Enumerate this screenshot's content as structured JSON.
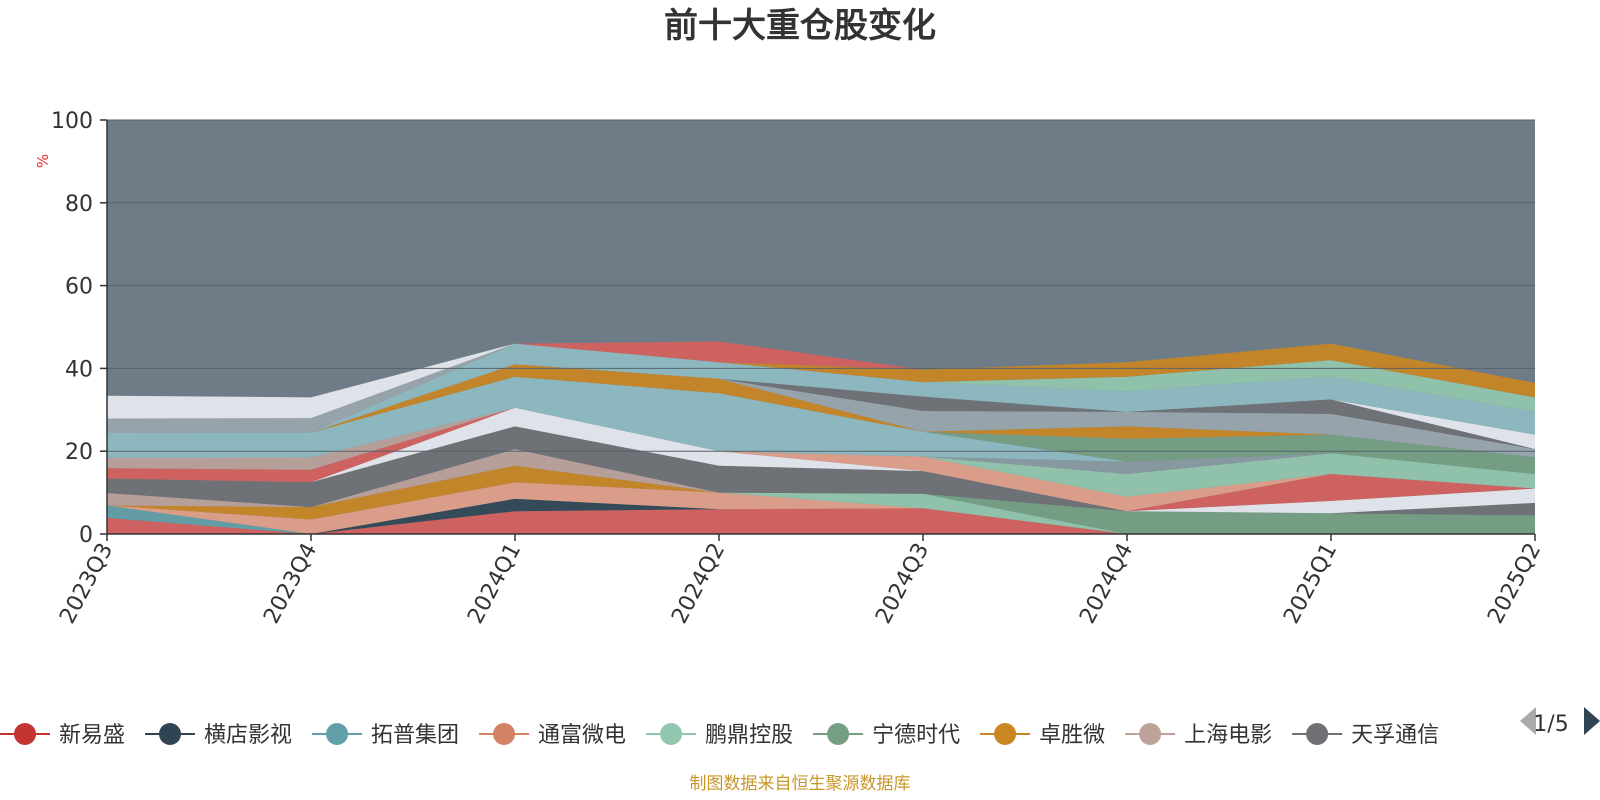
{
  "chart_data": {
    "type": "area",
    "title": "前十大重仓股变化",
    "ylabel": "%",
    "ylim": [
      0,
      100
    ],
    "yticks": [
      "0",
      "20",
      "40",
      "60",
      "80",
      "100"
    ],
    "categories": [
      "2023Q3",
      "2023Q4",
      "2024Q1",
      "2024Q2",
      "2024Q3",
      "2024Q4",
      "2025Q1",
      "2025Q2"
    ],
    "stacked": true,
    "grid": true,
    "background_color": "#6e7c87",
    "series": [
      {
        "name": "新易盛",
        "color": "#d65f5c",
        "values": [
          3.9,
          0,
          5.5,
          6.0,
          6.2,
          0,
          0,
          0
        ]
      },
      {
        "name": "横店影视",
        "color": "#2f4554",
        "values": [
          0,
          0,
          3.0,
          0,
          0,
          0,
          0,
          0
        ]
      },
      {
        "name": "拓普集团",
        "color": "#61a0a8",
        "values": [
          3.0,
          0,
          0,
          0,
          0,
          0,
          0,
          0
        ]
      },
      {
        "name": "通富微电",
        "color": "#e3a08a",
        "values": [
          0,
          3.5,
          4.0,
          4.0,
          0,
          0,
          0,
          0
        ]
      },
      {
        "name": "鹏鼎控股",
        "color": "#91c7ae",
        "values": [
          0,
          0,
          0,
          0,
          3.5,
          0,
          0,
          0
        ]
      },
      {
        "name": "宁德时代",
        "color": "#749f83",
        "values": [
          0,
          0,
          0,
          0,
          0,
          5.5,
          5.0,
          4.5
        ]
      },
      {
        "name": "卓胜微",
        "color": "#ca8622",
        "values": [
          0,
          3.0,
          4.0,
          0,
          0,
          0,
          0,
          0
        ]
      },
      {
        "name": "上海电影",
        "color": "#bda29a",
        "values": [
          3.0,
          0,
          4.0,
          0,
          0,
          0,
          0,
          0
        ]
      },
      {
        "name": "天孚通信",
        "color": "#6e7074",
        "values": [
          3.5,
          6.0,
          5.5,
          6.5,
          5.5,
          0,
          0,
          3.0
        ]
      },
      {
        "name": "",
        "color": "#e8eaf0",
        "values": [
          0,
          0,
          4.5,
          3.5,
          0,
          0,
          3.0,
          3.5
        ]
      },
      {
        "name": "",
        "color": "#d65f5c",
        "values": [
          2.5,
          3.0,
          0,
          0,
          0,
          0,
          6.5,
          0
        ]
      },
      {
        "name": "",
        "color": "#e3a08a",
        "values": [
          0,
          0,
          0,
          0,
          3.5,
          3.5,
          0,
          0
        ]
      },
      {
        "name": "",
        "color": "#91c7ae",
        "values": [
          0,
          0,
          0,
          0,
          0,
          5.5,
          5.0,
          3.5
        ]
      },
      {
        "name": "",
        "color": "#8a9aa3",
        "values": [
          0,
          0,
          0,
          0,
          0,
          3.0,
          0,
          0
        ]
      },
      {
        "name": "",
        "color": "#bda29a",
        "values": [
          2.5,
          3.0,
          0,
          0,
          0,
          0,
          0,
          0
        ]
      },
      {
        "name": "",
        "color": "#8fbcc2",
        "values": [
          6.0,
          6.0,
          7.5,
          14.0,
          6.0,
          0,
          0,
          0
        ]
      },
      {
        "name": "",
        "color": "#749f83",
        "values": [
          0,
          0,
          0,
          0,
          0,
          5.5,
          4.5,
          4.0
        ]
      },
      {
        "name": "",
        "color": "#ca8622",
        "values": [
          0,
          0,
          3.0,
          3.5,
          0,
          3.0,
          0,
          0
        ]
      },
      {
        "name": "",
        "color": "#9aa6ad",
        "values": [
          0,
          0,
          0,
          0,
          5.0,
          3.5,
          5.0,
          2.0
        ]
      },
      {
        "name": "",
        "color": "#6e7074",
        "values": [
          0,
          0,
          0,
          0,
          3.5,
          0,
          3.5,
          0
        ]
      },
      {
        "name": "",
        "color": "#e8eaf0",
        "values": [
          0,
          0,
          0,
          0,
          0,
          0,
          0,
          3.5
        ]
      },
      {
        "name": "",
        "color": "#8fbcc2",
        "values": [
          0,
          0,
          5.0,
          4.0,
          3.5,
          5.0,
          5.5,
          5.5
        ]
      },
      {
        "name": "",
        "color": "#91c7ae",
        "values": [
          0,
          0,
          0,
          0,
          0,
          3.5,
          4.0,
          3.5
        ]
      },
      {
        "name": "",
        "color": "#ca8622",
        "values": [
          0,
          0,
          0,
          0,
          3.0,
          3.5,
          4.0,
          3.5
        ]
      },
      {
        "name": "",
        "color": "#d65f5c",
        "values": [
          0,
          0,
          0,
          5.0,
          0,
          0,
          0,
          0
        ]
      },
      {
        "name": "",
        "color": "#9aa6ad",
        "values": [
          3.5,
          3.5,
          0,
          0,
          0,
          0,
          0,
          0
        ]
      },
      {
        "name": "",
        "color": "#e8eaf0",
        "values": [
          5.5,
          5.0,
          0,
          0,
          0,
          0,
          0,
          0
        ]
      }
    ]
  },
  "legend": {
    "items": [
      {
        "name": "新易盛",
        "color": "#c23531"
      },
      {
        "name": "横店影视",
        "color": "#2f4554"
      },
      {
        "name": "拓普集团",
        "color": "#61a0a8"
      },
      {
        "name": "通富微电",
        "color": "#d48265"
      },
      {
        "name": "鹏鼎控股",
        "color": "#91c7ae"
      },
      {
        "name": "宁德时代",
        "color": "#749f83"
      },
      {
        "name": "卓胜微",
        "color": "#ca8622"
      },
      {
        "name": "上海电影",
        "color": "#bda29a"
      },
      {
        "name": "天孚通信",
        "color": "#6e7074"
      }
    ],
    "page_indicator": "1/5",
    "prev_icon": "triangle-left-icon",
    "next_icon": "triangle-right-icon"
  },
  "source_note": "制图数据来自恒生聚源数据库"
}
